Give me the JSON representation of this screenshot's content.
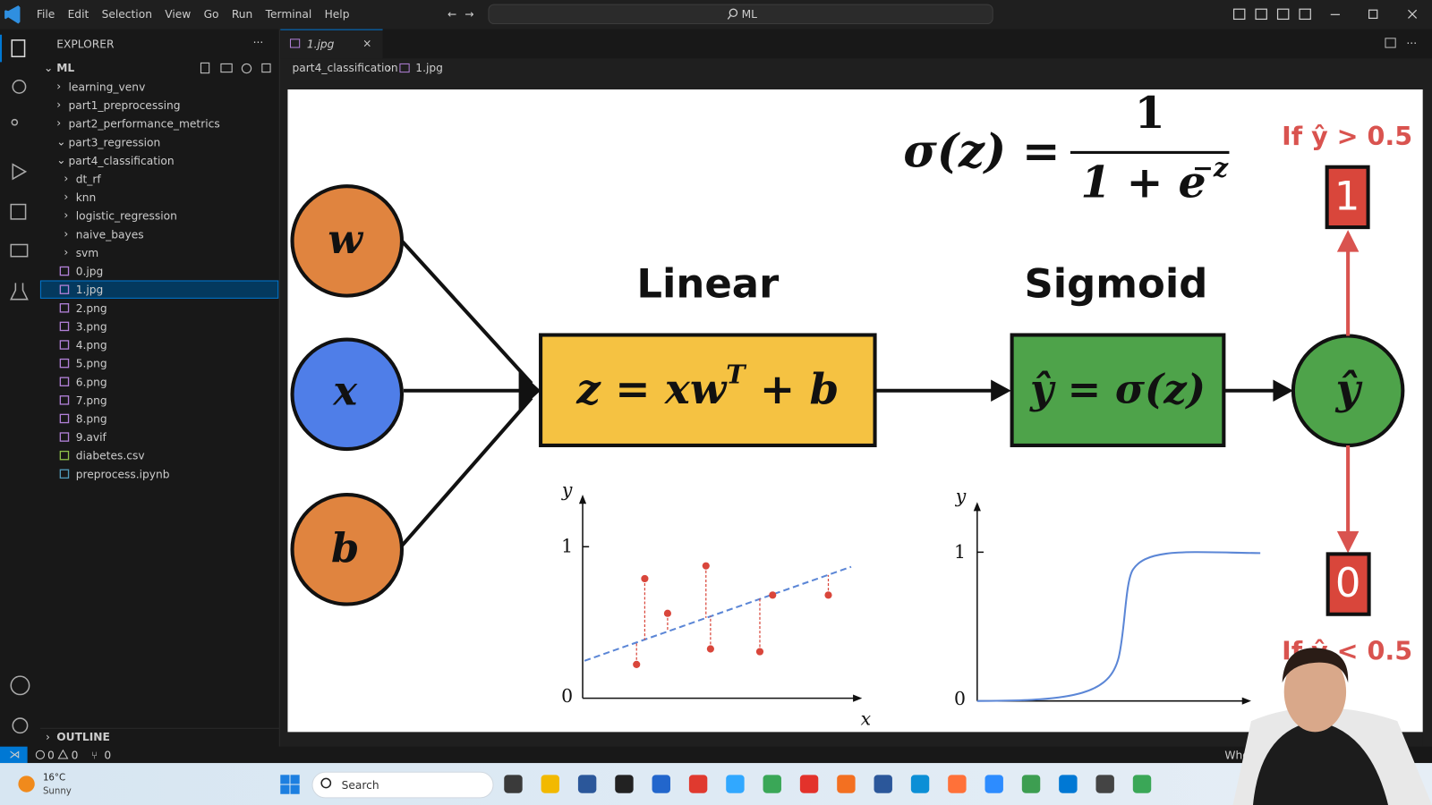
{
  "menu": [
    "File",
    "Edit",
    "Selection",
    "View",
    "Go",
    "Run",
    "Terminal",
    "Help"
  ],
  "search": "ML",
  "sidebar": {
    "title": "EXPLORER",
    "root": "ML",
    "folders": [
      {
        "name": "learning_venv"
      },
      {
        "name": "part1_preprocessing"
      },
      {
        "name": "part2_performance_metrics"
      },
      {
        "name": "part3_regression",
        "open": true
      },
      {
        "name": "part4_classification",
        "open": true,
        "folders": [
          "dt_rf",
          "knn",
          "logistic_regression",
          "naive_bayes",
          "svm"
        ],
        "files": [
          "0.jpg",
          "1.jpg",
          "2.png",
          "3.png",
          "4.png",
          "5.png",
          "6.png",
          "7.png",
          "8.png",
          "9.avif",
          "diabetes.csv",
          "preprocess.ipynb"
        ]
      }
    ],
    "outline": "OUTLINE"
  },
  "tab": "1.jpg",
  "breadcrumb": [
    "part4_classification",
    "1.jpg"
  ],
  "diagram": {
    "formula_lhs": "σ(z) =",
    "formula_numerator": "1",
    "formula_denominator": "1 + e",
    "formula_exponent": "−z",
    "inputs": [
      "w",
      "x",
      "b"
    ],
    "linear_title": "Linear",
    "linear_eq": "z = xw",
    "linear_sup": "T",
    "linear_tail": " + b",
    "sigmoid_title": "Sigmoid",
    "sigmoid_eq": "ŷ = σ(z)",
    "output": "ŷ",
    "if_high": "If ŷ > 0.5",
    "out_high": "1",
    "if_low": "If ŷ < 0.5",
    "out_low": "0",
    "plot_y": "y",
    "plot_x": "x",
    "plot_one": "1",
    "plot_zero": "0"
  },
  "status": {
    "errors": "0",
    "warnings": "0",
    "ports": "0",
    "right": "Whole"
  },
  "taskbar": {
    "temperature": "16°C",
    "weather": "Sunny",
    "search": "Search"
  }
}
